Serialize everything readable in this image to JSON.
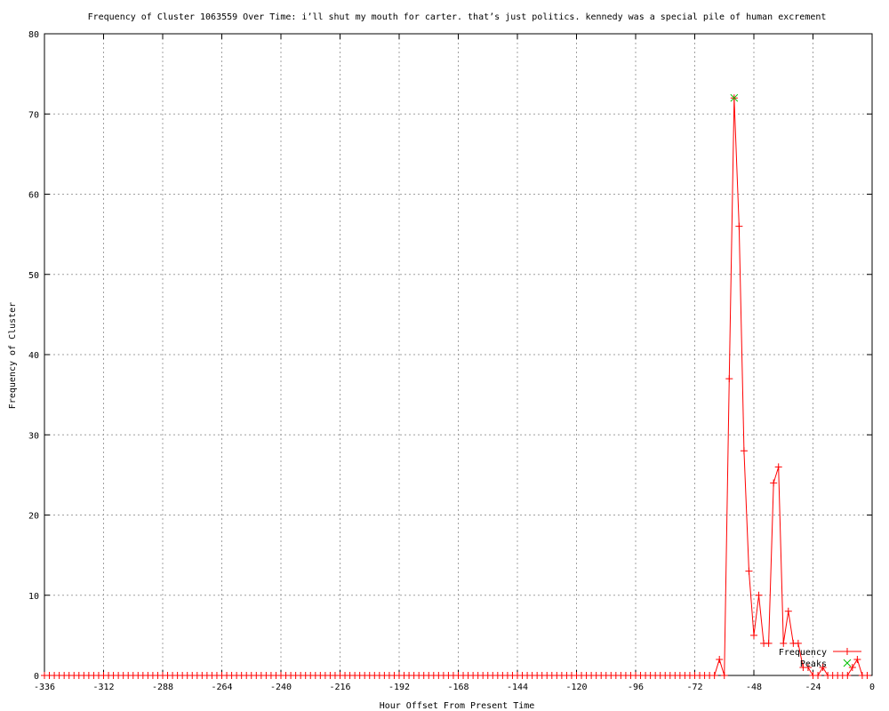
{
  "chart_data": {
    "type": "line",
    "title": "Frequency of Cluster 1063559 Over Time: i’ll shut my mouth for carter. that’s just politics. kennedy was a special pile of human excrement",
    "xlabel": "Hour Offset From Present Time",
    "ylabel": "Frequency of Cluster",
    "xlim": [
      -336,
      0
    ],
    "ylim": [
      0,
      80
    ],
    "xticks": [
      -336,
      -312,
      -288,
      -264,
      -240,
      -216,
      -192,
      -168,
      -144,
      -120,
      -96,
      -72,
      -48,
      -24,
      0
    ],
    "yticks": [
      0,
      10,
      20,
      30,
      40,
      50,
      60,
      70,
      80
    ],
    "grid": true,
    "legend_position": "bottom-right",
    "series": [
      {
        "name": "Frequency",
        "color": "#ff0000",
        "marker": "plus",
        "x": [
          -336,
          -334,
          -332,
          -330,
          -328,
          -326,
          -324,
          -322,
          -320,
          -318,
          -316,
          -314,
          -312,
          -310,
          -308,
          -306,
          -304,
          -302,
          -300,
          -298,
          -296,
          -294,
          -292,
          -290,
          -288,
          -286,
          -284,
          -282,
          -280,
          -278,
          -276,
          -274,
          -272,
          -270,
          -268,
          -266,
          -264,
          -262,
          -260,
          -258,
          -256,
          -254,
          -252,
          -250,
          -248,
          -246,
          -244,
          -242,
          -240,
          -238,
          -236,
          -234,
          -232,
          -230,
          -228,
          -226,
          -224,
          -222,
          -220,
          -218,
          -216,
          -214,
          -212,
          -210,
          -208,
          -206,
          -204,
          -202,
          -200,
          -198,
          -196,
          -194,
          -192,
          -190,
          -188,
          -186,
          -184,
          -182,
          -180,
          -178,
          -176,
          -174,
          -172,
          -170,
          -168,
          -166,
          -164,
          -162,
          -160,
          -158,
          -156,
          -154,
          -152,
          -150,
          -148,
          -146,
          -144,
          -142,
          -140,
          -138,
          -136,
          -134,
          -132,
          -130,
          -128,
          -126,
          -124,
          -122,
          -120,
          -118,
          -116,
          -114,
          -112,
          -110,
          -108,
          -106,
          -104,
          -102,
          -100,
          -98,
          -96,
          -94,
          -92,
          -90,
          -88,
          -86,
          -84,
          -82,
          -80,
          -78,
          -76,
          -74,
          -72,
          -70,
          -68,
          -66,
          -64,
          -62,
          -60,
          -58,
          -56,
          -54,
          -52,
          -50,
          -48,
          -46,
          -44,
          -42,
          -40,
          -38,
          -36,
          -34,
          -32,
          -30,
          -28,
          -26,
          -24,
          -22,
          -20,
          -18,
          -16,
          -14,
          -12,
          -10,
          -8,
          -6,
          -4,
          -2
        ],
        "y": [
          0,
          0,
          0,
          0,
          0,
          0,
          0,
          0,
          0,
          0,
          0,
          0,
          0,
          0,
          0,
          0,
          0,
          0,
          0,
          0,
          0,
          0,
          0,
          0,
          0,
          0,
          0,
          0,
          0,
          0,
          0,
          0,
          0,
          0,
          0,
          0,
          0,
          0,
          0,
          0,
          0,
          0,
          0,
          0,
          0,
          0,
          0,
          0,
          0,
          0,
          0,
          0,
          0,
          0,
          0,
          0,
          0,
          0,
          0,
          0,
          0,
          0,
          0,
          0,
          0,
          0,
          0,
          0,
          0,
          0,
          0,
          0,
          0,
          0,
          0,
          0,
          0,
          0,
          0,
          0,
          0,
          0,
          0,
          0,
          0,
          0,
          0,
          0,
          0,
          0,
          0,
          0,
          0,
          0,
          0,
          0,
          0,
          0,
          0,
          0,
          0,
          0,
          0,
          0,
          0,
          0,
          0,
          0,
          0,
          0,
          0,
          0,
          0,
          0,
          0,
          0,
          0,
          0,
          0,
          0,
          0,
          0,
          0,
          0,
          0,
          0,
          0,
          0,
          0,
          0,
          0,
          0,
          0,
          0,
          0,
          0,
          0,
          2,
          0,
          37,
          72,
          56,
          28,
          13,
          5,
          10,
          4,
          4,
          24,
          26,
          4,
          8,
          4,
          4,
          1,
          1,
          0,
          0,
          1,
          0,
          0,
          0,
          0,
          0,
          1,
          2,
          0,
          0
        ]
      },
      {
        "name": "Peaks",
        "color": "#00c000",
        "marker": "cross",
        "x": [
          -56
        ],
        "y": [
          72
        ]
      }
    ]
  }
}
